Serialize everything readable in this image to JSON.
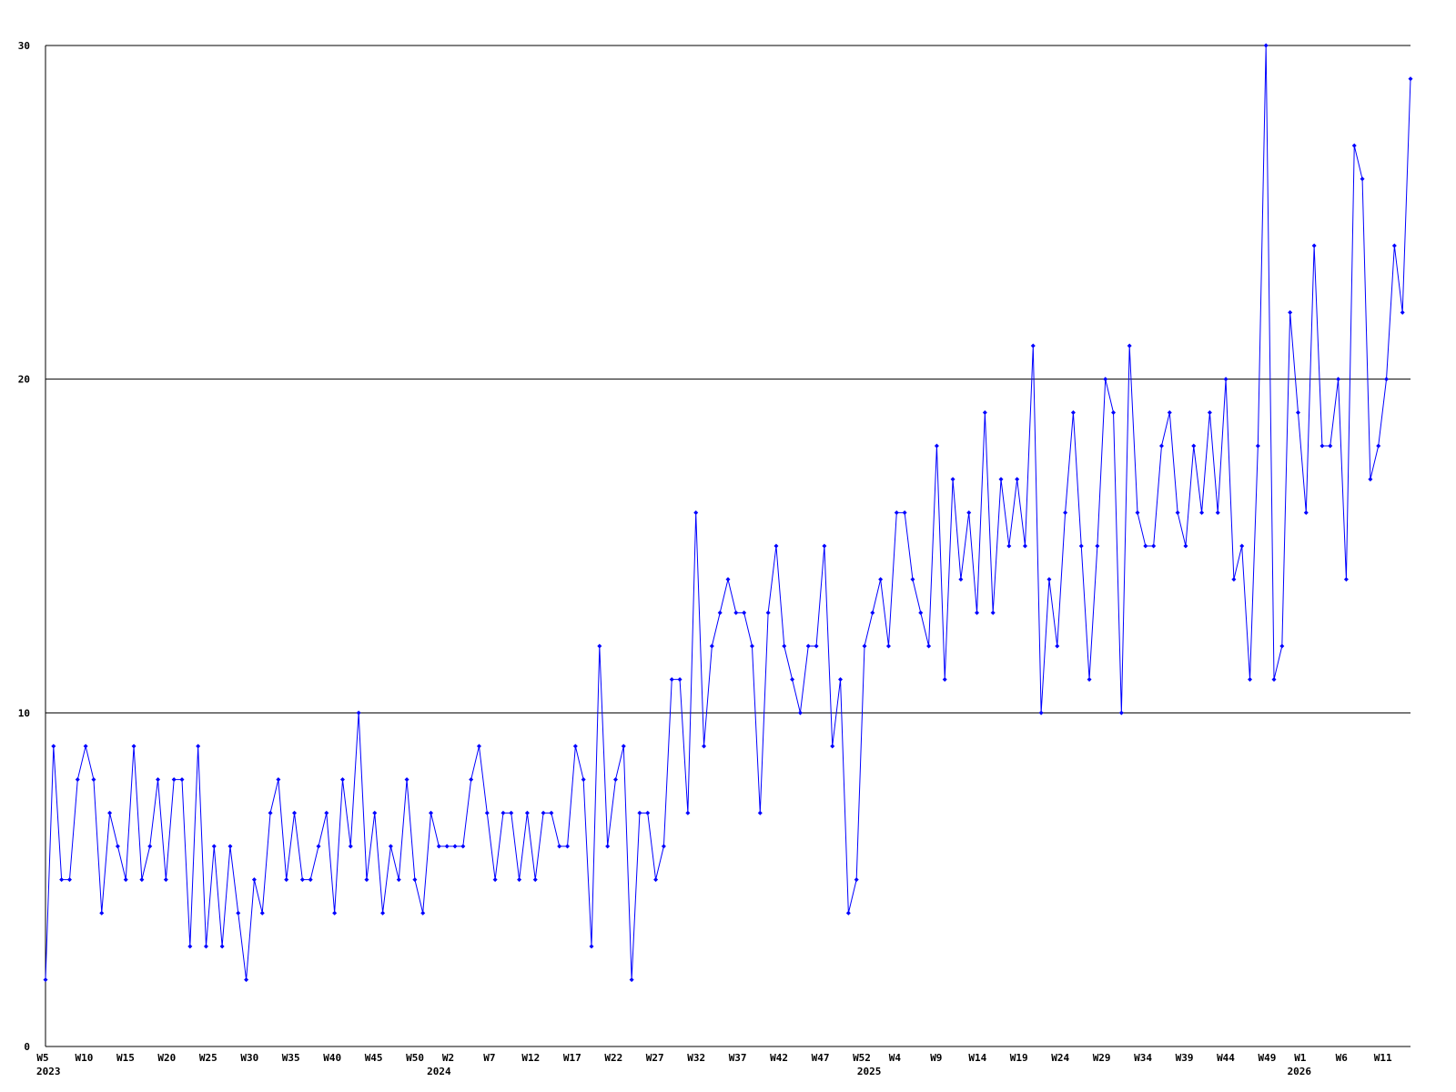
{
  "chart_data": {
    "type": "line",
    "title": "",
    "xlabel": "",
    "ylabel": "",
    "ylim": [
      0,
      30
    ],
    "y_ticks": [
      0,
      10,
      20,
      30
    ],
    "grid": "horizontal lines at y ticks",
    "legend": "none",
    "line_color": "#0000ff",
    "grid_color": "#000000",
    "marker": "diamond",
    "x_range": {
      "start": {
        "year": 2023,
        "week": 5
      },
      "end": {
        "year": 2026,
        "week": 14
      }
    },
    "x_ticks": [
      {
        "year": 2023,
        "week": 5,
        "label": "W5"
      },
      {
        "year": 2023,
        "week": 10,
        "label": "W10"
      },
      {
        "year": 2023,
        "week": 15,
        "label": "W15"
      },
      {
        "year": 2023,
        "week": 20,
        "label": "W20"
      },
      {
        "year": 2023,
        "week": 25,
        "label": "W25"
      },
      {
        "year": 2023,
        "week": 30,
        "label": "W30"
      },
      {
        "year": 2023,
        "week": 35,
        "label": "W35"
      },
      {
        "year": 2023,
        "week": 40,
        "label": "W40"
      },
      {
        "year": 2023,
        "week": 45,
        "label": "W45"
      },
      {
        "year": 2023,
        "week": 50,
        "label": "W50"
      },
      {
        "year": 2024,
        "week": 2,
        "label": "W2"
      },
      {
        "year": 2024,
        "week": 7,
        "label": "W7"
      },
      {
        "year": 2024,
        "week": 12,
        "label": "W12"
      },
      {
        "year": 2024,
        "week": 17,
        "label": "W17"
      },
      {
        "year": 2024,
        "week": 22,
        "label": "W22"
      },
      {
        "year": 2024,
        "week": 27,
        "label": "W27"
      },
      {
        "year": 2024,
        "week": 32,
        "label": "W32"
      },
      {
        "year": 2024,
        "week": 37,
        "label": "W37"
      },
      {
        "year": 2024,
        "week": 42,
        "label": "W42"
      },
      {
        "year": 2024,
        "week": 47,
        "label": "W47"
      },
      {
        "year": 2024,
        "week": 52,
        "label": "W52"
      },
      {
        "year": 2025,
        "week": 4,
        "label": "W4"
      },
      {
        "year": 2025,
        "week": 9,
        "label": "W9"
      },
      {
        "year": 2025,
        "week": 14,
        "label": "W14"
      },
      {
        "year": 2025,
        "week": 19,
        "label": "W19"
      },
      {
        "year": 2025,
        "week": 24,
        "label": "W24"
      },
      {
        "year": 2025,
        "week": 29,
        "label": "W29"
      },
      {
        "year": 2025,
        "week": 34,
        "label": "W34"
      },
      {
        "year": 2025,
        "week": 39,
        "label": "W39"
      },
      {
        "year": 2025,
        "week": 44,
        "label": "W44"
      },
      {
        "year": 2025,
        "week": 49,
        "label": "W49"
      },
      {
        "year": 2026,
        "week": 1,
        "label": "W1"
      },
      {
        "year": 2026,
        "week": 6,
        "label": "W6"
      },
      {
        "year": 2026,
        "week": 11,
        "label": "W11"
      }
    ],
    "year_labels": [
      {
        "year": 2023,
        "week": 5,
        "label": "2023"
      },
      {
        "year": 2024,
        "week": 1,
        "label": "2024"
      },
      {
        "year": 2025,
        "week": 1,
        "label": "2025"
      },
      {
        "year": 2026,
        "week": 1,
        "label": "2026"
      }
    ],
    "values": [
      2,
      9,
      5,
      5,
      8,
      9,
      8,
      4,
      7,
      6,
      5,
      9,
      5,
      6,
      8,
      5,
      8,
      8,
      3,
      9,
      3,
      6,
      3,
      6,
      4,
      2,
      5,
      4,
      7,
      8,
      5,
      7,
      5,
      5,
      6,
      7,
      4,
      8,
      6,
      10,
      5,
      7,
      4,
      6,
      5,
      8,
      5,
      4,
      7,
      6,
      6,
      6,
      6,
      8,
      9,
      7,
      5,
      7,
      7,
      5,
      7,
      5,
      7,
      7,
      6,
      6,
      9,
      8,
      3,
      12,
      6,
      8,
      9,
      2,
      7,
      7,
      5,
      6,
      11,
      11,
      7,
      16,
      9,
      12,
      13,
      14,
      13,
      13,
      12,
      7,
      13,
      15,
      12,
      11,
      10,
      12,
      12,
      15,
      9,
      11,
      4,
      5,
      12,
      13,
      14,
      12,
      16,
      16,
      14,
      13,
      12,
      18,
      11,
      17,
      14,
      16,
      13,
      19,
      13,
      17,
      15,
      17,
      15,
      21,
      10,
      14,
      12,
      16,
      19,
      15,
      11,
      15,
      20,
      19,
      10,
      21,
      16,
      15,
      15,
      18,
      19,
      16,
      15,
      18,
      16,
      19,
      16,
      20,
      14,
      15,
      11,
      18,
      30,
      11,
      12,
      22,
      19,
      16,
      24,
      18,
      18,
      20,
      14,
      27,
      26,
      17,
      18,
      20,
      24,
      22,
      29
    ]
  }
}
